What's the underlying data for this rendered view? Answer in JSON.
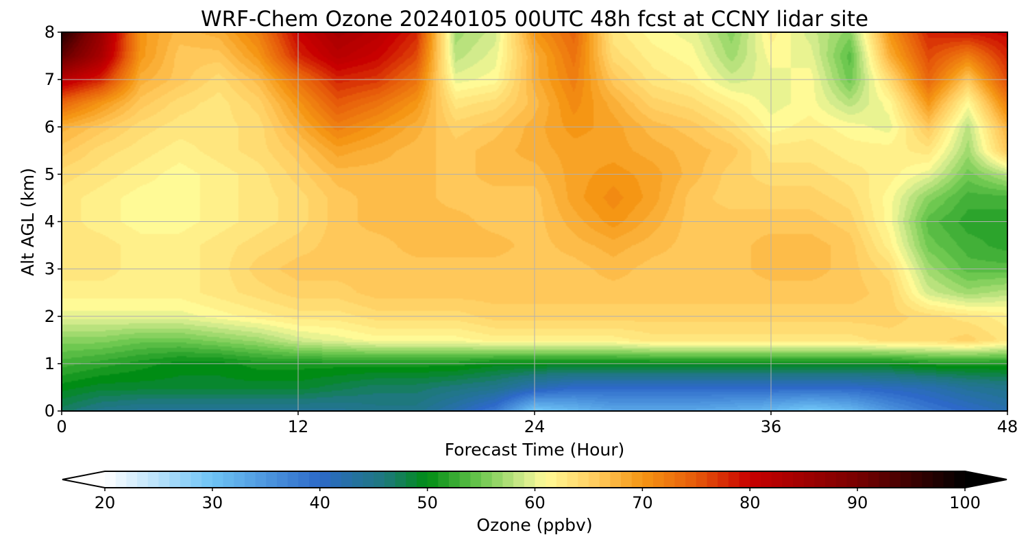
{
  "chart_data": {
    "type": "heatmap",
    "title": "WRF-Chem Ozone  20240105 00UTC 48h fcst at CCNY lidar site",
    "xlabel": "Forecast Time (Hour)",
    "ylabel": "Alt AGL (km)",
    "xlim": [
      0,
      48
    ],
    "ylim": [
      0,
      8
    ],
    "xticks": [
      0,
      12,
      24,
      36,
      48
    ],
    "yticks": [
      0,
      1,
      2,
      3,
      4,
      5,
      6,
      7,
      8
    ],
    "grid": true,
    "x": [
      0,
      2,
      4,
      6,
      8,
      10,
      12,
      14,
      16,
      18,
      20,
      22,
      24,
      26,
      28,
      30,
      32,
      34,
      36,
      38,
      40,
      42,
      44,
      46,
      48
    ],
    "y": [
      0,
      0.5,
      1,
      1.5,
      2,
      2.5,
      3,
      3.5,
      4,
      4.5,
      5,
      5.5,
      6,
      6.5,
      7,
      7.5,
      8
    ],
    "z": [
      [
        47,
        45,
        44,
        44,
        44,
        44,
        44,
        44,
        45,
        45,
        42,
        38,
        29,
        31,
        33,
        33,
        33,
        32,
        31,
        29,
        31,
        35,
        38,
        40,
        42
      ],
      [
        50,
        49,
        49,
        49,
        49,
        49,
        49,
        48,
        47,
        47,
        46,
        45,
        42,
        40,
        40,
        40,
        40,
        40,
        40,
        40,
        40,
        41,
        42,
        44,
        45
      ],
      [
        53,
        52,
        51,
        50,
        50,
        51,
        51,
        51,
        51,
        51,
        51,
        50,
        50,
        50,
        50,
        50,
        50,
        50,
        50,
        50,
        50,
        50,
        51,
        51,
        51
      ],
      [
        56,
        56,
        55,
        55,
        56,
        57,
        59,
        60,
        61,
        61,
        61,
        62,
        62,
        62,
        62,
        63,
        63,
        63,
        63,
        63,
        63,
        64,
        64,
        65,
        63
      ],
      [
        60,
        60,
        60,
        60,
        61,
        62,
        63,
        63,
        64,
        64,
        64,
        65,
        65,
        65,
        65,
        65,
        65,
        65,
        65,
        65,
        65,
        65,
        64,
        63,
        62
      ],
      [
        62,
        62,
        62,
        62,
        63,
        64,
        65,
        65,
        66,
        66,
        66,
        66,
        66,
        66,
        66,
        66,
        66,
        66,
        66,
        66,
        66,
        65,
        59,
        57,
        58
      ],
      [
        63,
        63,
        62,
        62,
        63,
        65,
        66,
        66,
        66,
        66,
        66,
        66,
        66,
        66,
        67,
        66,
        66,
        66,
        67,
        67,
        66,
        64,
        57,
        54,
        54
      ],
      [
        63,
        63,
        62,
        62,
        63,
        64,
        65,
        66,
        66,
        67,
        67,
        67,
        66,
        67,
        68,
        67,
        66,
        66,
        67,
        67,
        66,
        62,
        55,
        53,
        52
      ],
      [
        63,
        62,
        61,
        61,
        62,
        63,
        64,
        66,
        67,
        67,
        67,
        66,
        66,
        68,
        70,
        68,
        66,
        66,
        66,
        66,
        65,
        61,
        54,
        52,
        52
      ],
      [
        63,
        62,
        61,
        61,
        62,
        63,
        64,
        66,
        67,
        67,
        66,
        66,
        66,
        69,
        71,
        69,
        66,
        65,
        65,
        65,
        64,
        61,
        56,
        53,
        53
      ],
      [
        64,
        63,
        62,
        61,
        62,
        63,
        65,
        67,
        67,
        67,
        66,
        67,
        67,
        69,
        70,
        69,
        67,
        65,
        64,
        64,
        63,
        62,
        60,
        55,
        58
      ],
      [
        66,
        64,
        63,
        62,
        63,
        64,
        66,
        69,
        68,
        67,
        66,
        67,
        68,
        69,
        69,
        68,
        67,
        66,
        63,
        63,
        62,
        62,
        63,
        57,
        66
      ],
      [
        68,
        66,
        64,
        63,
        63,
        64,
        68,
        72,
        70,
        68,
        65,
        66,
        68,
        70,
        69,
        67,
        66,
        64,
        61,
        62,
        61,
        60,
        66,
        58,
        68
      ],
      [
        74,
        70,
        66,
        64,
        63,
        65,
        70,
        75,
        73,
        70,
        63,
        64,
        67,
        71,
        68,
        65,
        64,
        62,
        60,
        61,
        58,
        61,
        70,
        61,
        72
      ],
      [
        82,
        78,
        68,
        66,
        64,
        67,
        73,
        78,
        77,
        73,
        60,
        61,
        68,
        72,
        66,
        63,
        62,
        59,
        60,
        61,
        55,
        64,
        74,
        66,
        76
      ],
      [
        92,
        84,
        70,
        66,
        66,
        70,
        78,
        82,
        80,
        76,
        58,
        60,
        68,
        73,
        64,
        62,
        61,
        57,
        61,
        60,
        54,
        68,
        76,
        72,
        78
      ],
      [
        97,
        86,
        70,
        67,
        68,
        72,
        80,
        84,
        82,
        78,
        57,
        59,
        70,
        74,
        63,
        61,
        60,
        56,
        62,
        59,
        56,
        70,
        78,
        79,
        80
      ]
    ],
    "colorbar": {
      "label": "Ozone  (ppbv)",
      "min": 20,
      "max": 100,
      "ticks": [
        20,
        30,
        40,
        50,
        60,
        70,
        80,
        90,
        100
      ],
      "extend": "both",
      "orientation": "horizontal",
      "placement": "bottom"
    }
  }
}
